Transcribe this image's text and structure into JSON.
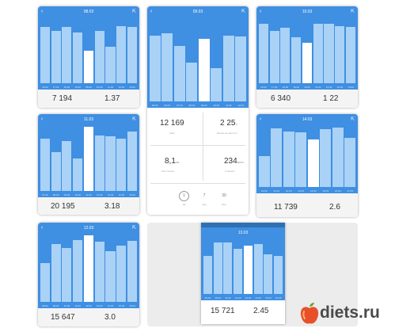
{
  "cards": [
    {
      "id": "card-0803",
      "date": "08.03",
      "bars": [
        0.86,
        0.8,
        0.86,
        0.77,
        0.5,
        0.8,
        0.55,
        0.87,
        0.85
      ],
      "selected_index": 4,
      "ticks": [
        "16.02",
        "17.02",
        "18.02",
        "19.02",
        "08.03",
        "10.03",
        "11.03",
        "12.03",
        "13.03"
      ],
      "primary": "7 194",
      "secondary": "1.37"
    },
    {
      "id": "card-0903",
      "date": "09.03",
      "bars": [
        0.78,
        0.81,
        0.66,
        0.46,
        0.75,
        0.4,
        0.78,
        0.77
      ],
      "selected_index": 4,
      "ticks": [
        "05.03",
        "06.03",
        "07.03",
        "08.03",
        "09.03",
        "10.03",
        "11.03",
        "12.03"
      ],
      "primary": "12 169",
      "primary_label": "Шаги",
      "secondary": "2 25",
      "secondary_unit": "ч",
      "secondary_label": "Время активности",
      "tertiary": "8,1",
      "tertiary_unit": "км",
      "tertiary_label": "Расстояние",
      "quaternary": "234",
      "quaternary_unit": "ккал",
      "quaternary_label": "Сожжено",
      "periods": [
        "1",
        "7",
        "30"
      ],
      "period_labels": [
        "Дн",
        "Нед",
        "Мес"
      ]
    },
    {
      "id": "card-1003",
      "date": "10.03",
      "bars": [
        0.9,
        0.8,
        0.84,
        0.7,
        0.62,
        0.9,
        0.9,
        0.87,
        0.85
      ],
      "selected_index": 4,
      "ticks": [
        "16.02",
        "17.02",
        "18.02",
        "19.02",
        "10.03",
        "11.03",
        "12.03",
        "13.03",
        "14.03"
      ],
      "primary": "6 340",
      "secondary": "1 22"
    },
    {
      "id": "card-1103",
      "date": "11.03",
      "bars": [
        0.8,
        0.59,
        0.76,
        0.5,
        0.98,
        0.84,
        0.83,
        0.8,
        0.9
      ],
      "selected_index": 4,
      "ticks": [
        "07.03",
        "08.03",
        "09.03",
        "10.03",
        "11.03",
        "12.03",
        "13.03",
        "14.03",
        "15.03"
      ],
      "primary": "20 195",
      "secondary": "3.18"
    },
    {
      "id": "card-1403",
      "date": "14.03",
      "bars": [
        0.5,
        0.95,
        0.9,
        0.89,
        0.77,
        0.93,
        0.96,
        0.8
      ],
      "selected_index": 4,
      "ticks": [
        "10.03",
        "11.03",
        "12.03",
        "13.03",
        "14.03",
        "15.03",
        "16.03",
        "17.03"
      ],
      "primary": "11 739",
      "secondary": "2.6"
    },
    {
      "id": "card-1203",
      "date": "12.03",
      "bars": [
        0.57,
        0.85,
        0.79,
        0.91,
        0.98,
        0.88,
        0.75,
        0.82,
        0.9
      ],
      "selected_index": 4,
      "ticks": [
        "08.03",
        "09.03",
        "10.03",
        "11.03",
        "12.03",
        "13.03",
        "14.03",
        "15.03",
        "16.03"
      ],
      "primary": "15 647",
      "secondary": "3.0"
    },
    {
      "id": "card-1303",
      "date": "13.03",
      "bars": [
        0.7,
        0.95,
        0.95,
        0.84,
        0.9,
        0.93,
        0.74,
        0.7
      ],
      "selected_index": 4,
      "ticks": [
        "09.03",
        "10.03",
        "11.03",
        "12.03",
        "13.03",
        "14.03",
        "15.03",
        "16.03"
      ],
      "primary": "15 721",
      "secondary": "2.45"
    }
  ],
  "watermark": {
    "text": "diets.ru",
    "icon": "apple-icon",
    "colors": {
      "apple": "#e8502a",
      "leaf": "#5aa02c",
      "text": "#4a4a4a"
    }
  },
  "colors": {
    "chart_bg": "#3f8fe2",
    "bar": "#a9d2f6",
    "bar_selected": "#ffffff",
    "stats_bg": "#f4f4f4"
  }
}
